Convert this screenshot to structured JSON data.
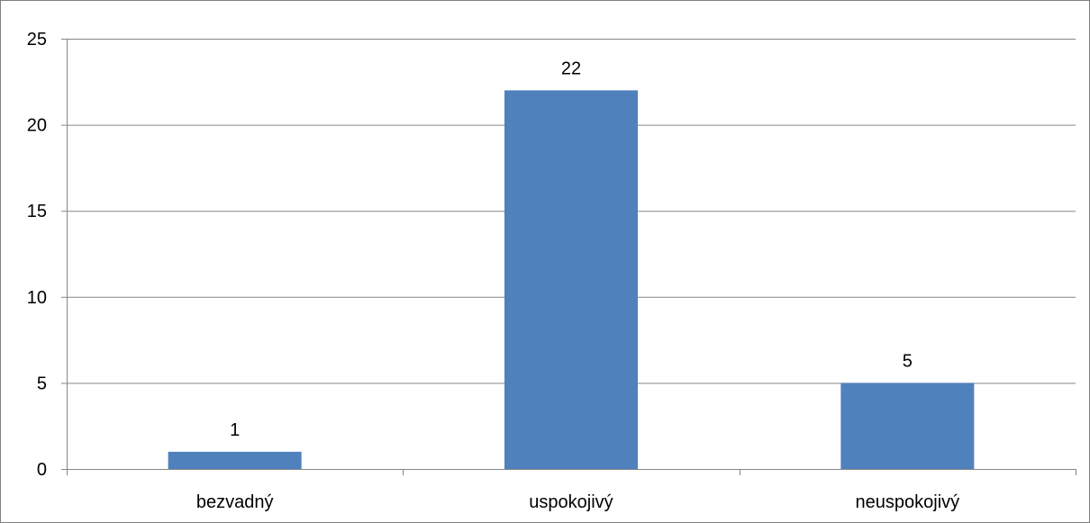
{
  "chart_data": {
    "type": "bar",
    "title": "",
    "xlabel": "",
    "ylabel": "",
    "categories": [
      "bezvadný",
      "uspokojivý",
      "neuspokojivý"
    ],
    "values": [
      1,
      22,
      5
    ],
    "data_labels": [
      "1",
      "22",
      "5"
    ],
    "ylim": [
      0,
      25
    ],
    "yticks": [
      0,
      5,
      10,
      15,
      20,
      25
    ],
    "ytick_labels": [
      "0",
      "5",
      "10",
      "15",
      "20",
      "25"
    ],
    "grid": true,
    "legend": "none",
    "colors": {
      "bar": "#4f81bd",
      "grid": "#868686",
      "axis": "#868686",
      "border": "#7f7f7f",
      "text": "#000000"
    }
  }
}
